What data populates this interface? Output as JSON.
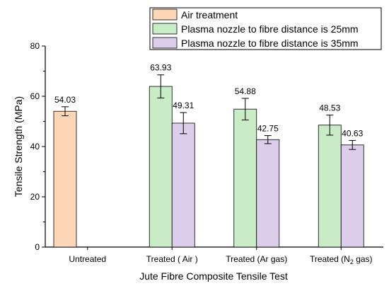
{
  "chart_data": {
    "type": "bar",
    "title": "",
    "xlabel": "Jute Fibre Composite Tensile Test",
    "ylabel": "Tensile Strength (MPa)",
    "ylim": [
      0,
      80
    ],
    "yticks": [
      0,
      20,
      40,
      60,
      80
    ],
    "categories": [
      "Untreated",
      "Treated ( Air )",
      "Treated (Ar gas)",
      "Treated (N2 gas)"
    ],
    "series": [
      {
        "name": "Air treatment",
        "color": "#fdd7b7",
        "values": [
          54.03,
          null,
          null,
          null
        ],
        "errors": [
          1.8,
          null,
          null,
          null
        ],
        "labels": [
          "54.03",
          null,
          null,
          null
        ]
      },
      {
        "name": "Plasma nozzle to fibre distance is 25mm",
        "color": "#c9ebc6",
        "values": [
          null,
          63.93,
          54.88,
          48.53
        ],
        "errors": [
          null,
          4.6,
          4.3,
          4.0
        ],
        "labels": [
          null,
          "63.93",
          "54.88",
          "48.53"
        ]
      },
      {
        "name": "Plasma nozzle to fibre distance is 35mm",
        "color": "#dccdeb",
        "values": [
          null,
          49.31,
          42.75,
          40.63
        ],
        "errors": [
          null,
          4.2,
          1.6,
          1.8
        ],
        "labels": [
          null,
          "49.31",
          "42.75",
          "40.63"
        ]
      }
    ],
    "legend_position": "top-right",
    "grid": false
  }
}
